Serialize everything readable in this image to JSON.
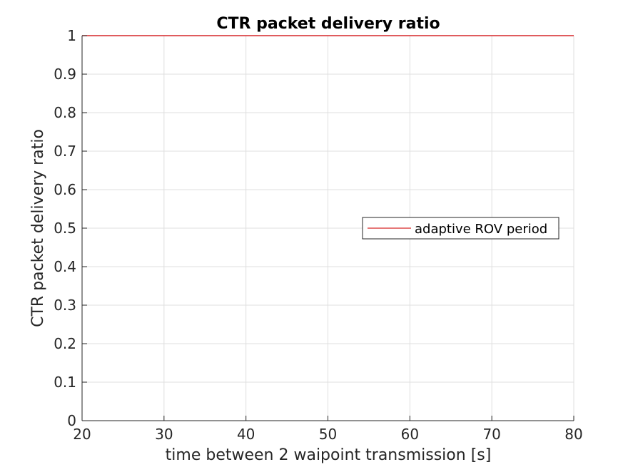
{
  "chart_data": {
    "type": "line",
    "title": "CTR packet delivery ratio",
    "xlabel": "time between 2 waipoint transmission [s]",
    "ylabel": "CTR packet delivery ratio",
    "xlim": [
      20,
      80
    ],
    "ylim": [
      0,
      1
    ],
    "xticks": [
      20,
      30,
      40,
      50,
      60,
      70,
      80
    ],
    "yticks": [
      0,
      0.1,
      0.2,
      0.3,
      0.4,
      0.5,
      0.6,
      0.7,
      0.8,
      0.9,
      1
    ],
    "xtick_labels": [
      "20",
      "30",
      "40",
      "50",
      "60",
      "70",
      "80"
    ],
    "ytick_labels": [
      "0",
      "0.1",
      "0.2",
      "0.3",
      "0.4",
      "0.5",
      "0.6",
      "0.7",
      "0.8",
      "0.9",
      "1"
    ],
    "grid": true,
    "legend_position": "east",
    "series": [
      {
        "name": "adaptive ROV period",
        "color": "#d62728",
        "x": [
          20,
          30,
          40,
          50,
          60,
          70,
          80
        ],
        "y": [
          1,
          1,
          1,
          1,
          1,
          1,
          1
        ]
      }
    ]
  }
}
